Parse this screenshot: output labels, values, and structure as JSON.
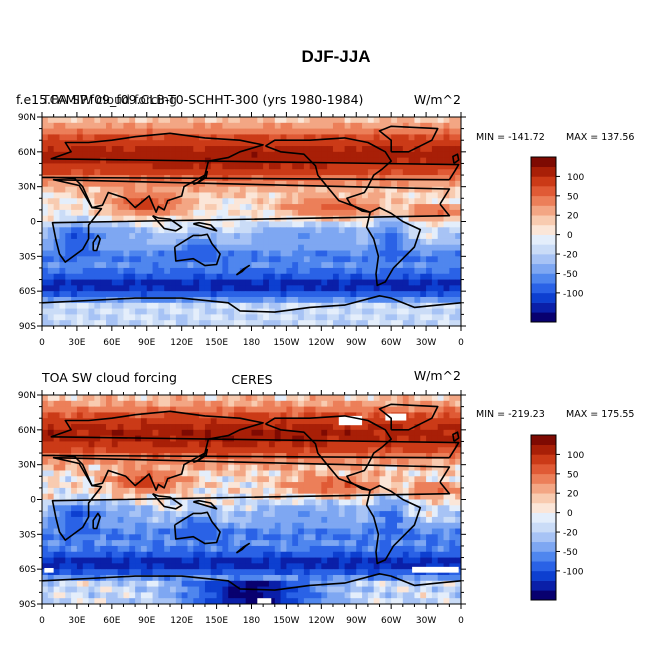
{
  "figure_title": "DJF-JJA",
  "chart_data": [
    {
      "type": "heatmap",
      "title_left": "f.e15.FAMIP.f09_f09.CLB-T0-SCHHT-300 (yrs 1980-1984)",
      "title_left_overlay": "TOA SW cloud forcing",
      "title_right": "W/m^2",
      "title_center": "",
      "xlabel": "",
      "ylabel": "",
      "x_ticks": [
        "0",
        "30E",
        "60E",
        "90E",
        "120E",
        "150E",
        "180",
        "150W",
        "120W",
        "90W",
        "60W",
        "30W",
        "0"
      ],
      "y_ticks": [
        "90N",
        "60N",
        "30N",
        "0",
        "30S",
        "60S",
        "90S"
      ],
      "xlim": [
        0,
        360
      ],
      "ylim": [
        -90,
        90
      ],
      "min_label": "MIN = -141.72",
      "max_label": "MAX = 137.56",
      "stats": {
        "min": -141.72,
        "max": 137.56
      },
      "colorbar_labels": [
        "100",
        "50",
        "20",
        "0",
        "-20",
        "-50",
        "-100"
      ],
      "colorbar_levels": [
        -120,
        -100,
        -80,
        -50,
        -40,
        -20,
        -10,
        -5,
        0,
        5,
        10,
        20,
        40,
        50,
        80,
        100,
        120
      ]
    },
    {
      "type": "heatmap",
      "title_left": "TOA SW cloud forcing",
      "title_center": "CERES",
      "title_right": "W/m^2",
      "xlabel": "",
      "ylabel": "",
      "x_ticks": [
        "0",
        "30E",
        "60E",
        "90E",
        "120E",
        "150E",
        "180",
        "150W",
        "120W",
        "90W",
        "60W",
        "30W",
        "0"
      ],
      "y_ticks": [
        "90N",
        "60N",
        "30N",
        "0",
        "30S",
        "60S",
        "90S"
      ],
      "xlim": [
        0,
        360
      ],
      "ylim": [
        -90,
        90
      ],
      "min_label": "MIN = -219.23",
      "max_label": "MAX = 175.55",
      "stats": {
        "min": -219.23,
        "max": 175.55
      },
      "colorbar_labels": [
        "100",
        "50",
        "20",
        "0",
        "-20",
        "-50",
        "-100"
      ],
      "colorbar_levels": [
        -120,
        -100,
        -80,
        -50,
        -40,
        -20,
        -10,
        -5,
        0,
        5,
        10,
        20,
        40,
        50,
        80,
        100,
        120
      ]
    }
  ],
  "colorbar_colors": [
    "#08006f",
    "#0a1fa8",
    "#0d3fd0",
    "#2a62e6",
    "#4f86ee",
    "#7ea7f2",
    "#a7c3f5",
    "#cadcf7",
    "#e4eefb",
    "#fbe6d8",
    "#f8cbb0",
    "#f3a684",
    "#ec7f59",
    "#e05a35",
    "#cb3a17",
    "#a81f07",
    "#7e0a02"
  ]
}
